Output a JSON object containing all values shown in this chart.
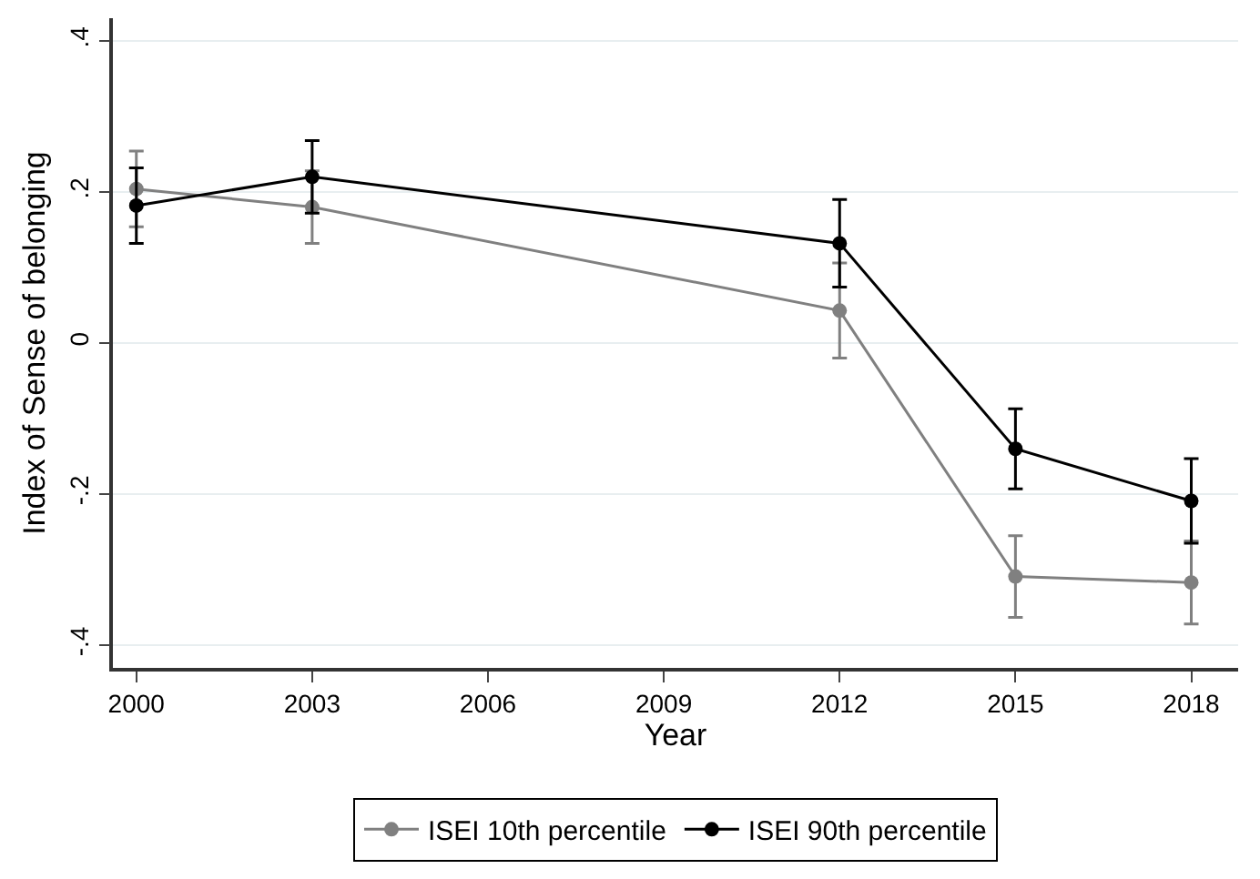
{
  "chart_data": {
    "type": "line",
    "xlabel": "Year",
    "ylabel": "Index of Sense of belonging",
    "x": [
      2000,
      2003,
      2012,
      2015,
      2018
    ],
    "series": [
      {
        "name": "ISEI 10th percentile",
        "color": "#808080",
        "values": [
          0.204,
          0.18,
          0.043,
          -0.309,
          -0.317
        ],
        "errors": [
          0.05,
          0.048,
          0.063,
          0.054,
          0.055
        ]
      },
      {
        "name": "ISEI 90th percentile",
        "color": "#000000",
        "values": [
          0.182,
          0.22,
          0.132,
          -0.14,
          -0.209
        ],
        "errors": [
          0.05,
          0.048,
          0.058,
          0.053,
          0.056
        ]
      }
    ],
    "xlim": [
      1999.6,
      2018.8
    ],
    "xticks": [
      2000,
      2003,
      2006,
      2009,
      2012,
      2015,
      2018
    ],
    "ylim": [
      -0.43,
      0.43
    ],
    "yticks": [
      {
        "value": -0.4,
        "label": "-.4"
      },
      {
        "value": -0.2,
        "label": "-.2"
      },
      {
        "value": 0,
        "label": "0"
      },
      {
        "value": 0.2,
        "label": ".2"
      },
      {
        "value": 0.4,
        "label": ".4"
      }
    ],
    "grid": "y",
    "legend": "bottom",
    "marker": "circle",
    "line_style": "solid"
  }
}
